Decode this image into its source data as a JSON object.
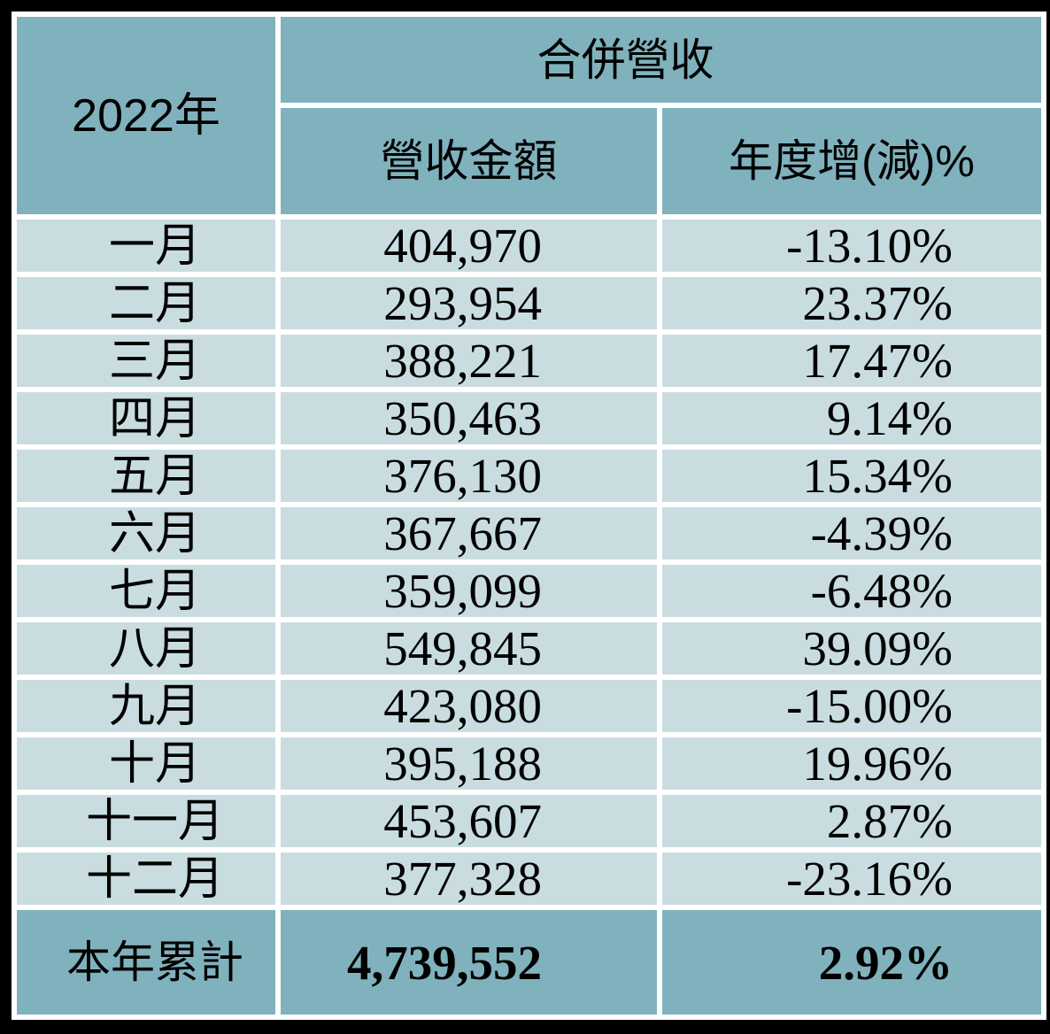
{
  "table": {
    "year": "2022年",
    "group_header": "合併營收",
    "columns": {
      "amount": "營收金額",
      "yoy": "年度增(減)%"
    },
    "rows": [
      {
        "month": "一月",
        "amount": "404,970",
        "yoy": "-13.10%"
      },
      {
        "month": "二月",
        "amount": "293,954",
        "yoy": "23.37%"
      },
      {
        "month": "三月",
        "amount": "388,221",
        "yoy": "17.47%"
      },
      {
        "month": "四月",
        "amount": "350,463",
        "yoy": "9.14%"
      },
      {
        "month": "五月",
        "amount": "376,130",
        "yoy": "15.34%"
      },
      {
        "month": "六月",
        "amount": "367,667",
        "yoy": "-4.39%"
      },
      {
        "month": "七月",
        "amount": "359,099",
        "yoy": "-6.48%"
      },
      {
        "month": "八月",
        "amount": "549,845",
        "yoy": "39.09%"
      },
      {
        "month": "九月",
        "amount": "423,080",
        "yoy": "-15.00%"
      },
      {
        "month": "十月",
        "amount": "395,188",
        "yoy": "19.96%"
      },
      {
        "month": "十一月",
        "amount": "453,607",
        "yoy": "2.87%"
      },
      {
        "month": "十二月",
        "amount": "377,328",
        "yoy": "-23.16%"
      }
    ],
    "total": {
      "label": "本年累計",
      "amount": "4,739,552",
      "yoy": "2.92%"
    }
  },
  "colors": {
    "header_bg": "#7fb2bd",
    "row_bg": "#c9dde1",
    "gridline": "#ffffff",
    "frame": "#000000"
  },
  "chart_data": {
    "type": "table",
    "title": "2022年 合併營收",
    "columns": [
      "2022年",
      "營收金額",
      "年度增(減)%"
    ],
    "categories": [
      "一月",
      "二月",
      "三月",
      "四月",
      "五月",
      "六月",
      "七月",
      "八月",
      "九月",
      "十月",
      "十一月",
      "十二月"
    ],
    "series": [
      {
        "name": "營收金額",
        "values": [
          404970,
          293954,
          388221,
          350463,
          376130,
          367667,
          359099,
          549845,
          423080,
          395188,
          453607,
          377328
        ]
      },
      {
        "name": "年度增(減)%",
        "values": [
          -13.1,
          23.37,
          17.47,
          9.14,
          15.34,
          -4.39,
          -6.48,
          39.09,
          -15.0,
          19.96,
          2.87,
          -23.16
        ]
      }
    ],
    "total_row": {
      "label": "本年累計",
      "營收金額": 4739552,
      "年度增(減)%": 2.92
    },
    "layout": {
      "grid": "white separators on black frame",
      "legend_position": "none"
    }
  }
}
